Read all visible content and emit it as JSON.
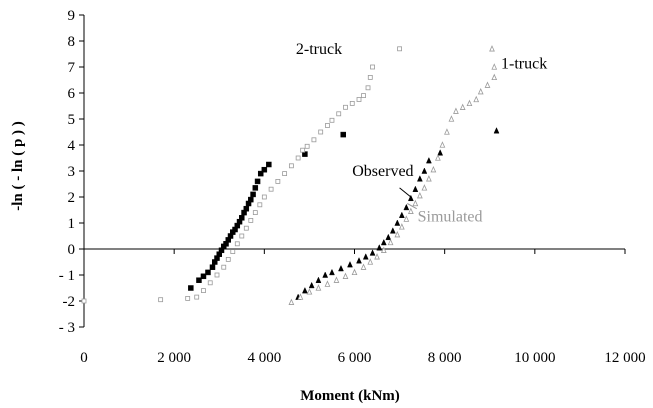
{
  "chart_data": {
    "type": "scatter",
    "xlabel": "Moment (kNm)",
    "ylabel": "-ln ( - ln ( p ) )",
    "xlim": [
      0,
      12000
    ],
    "ylim": [
      -3,
      9
    ],
    "x_ticks": [
      0,
      2000,
      4000,
      6000,
      8000,
      10000,
      12000
    ],
    "x_tick_labels": [
      "0",
      "2 000",
      "4 000",
      "6 000",
      "8 000",
      "10 000",
      "12 000"
    ],
    "y_ticks": [
      -3,
      -2,
      -1,
      0,
      1,
      2,
      3,
      4,
      5,
      6,
      7,
      8,
      9
    ],
    "y_tick_labels": [
      "- 3",
      "-2",
      "- 1",
      "0",
      "1",
      "2",
      "3",
      "4",
      "5",
      "6",
      "7",
      "8",
      "9"
    ],
    "grid": false,
    "legend": "none",
    "annotations": [
      {
        "text": "2-truck",
        "x": 4700,
        "y": 7.5,
        "color": "#000000"
      },
      {
        "text": "1-truck",
        "x": 9250,
        "y": 6.95,
        "color": "#000000"
      },
      {
        "text": "Observed",
        "x": 5950,
        "y": 2.8,
        "color": "#000000"
      },
      {
        "text": "Simulated",
        "x": 7400,
        "y": 1.05,
        "color": "#9a9a9a"
      }
    ],
    "series": [
      {
        "color": "#000000",
        "marker": "square-filled",
        "points": [
          [
            2370,
            -1.5
          ],
          [
            2550,
            -1.2
          ],
          [
            2650,
            -1.05
          ],
          [
            2750,
            -0.9
          ],
          [
            2850,
            -0.7
          ],
          [
            2900,
            -0.5
          ],
          [
            2950,
            -0.35
          ],
          [
            3000,
            -0.2
          ],
          [
            3050,
            -0.05
          ],
          [
            3100,
            0.1
          ],
          [
            3150,
            0.2
          ],
          [
            3200,
            0.35
          ],
          [
            3250,
            0.5
          ],
          [
            3300,
            0.65
          ],
          [
            3350,
            0.75
          ],
          [
            3400,
            0.9
          ],
          [
            3450,
            1.05
          ],
          [
            3500,
            1.2
          ],
          [
            3550,
            1.4
          ],
          [
            3600,
            1.55
          ],
          [
            3650,
            1.75
          ],
          [
            3700,
            1.9
          ],
          [
            3750,
            2.1
          ],
          [
            3800,
            2.35
          ],
          [
            3850,
            2.6
          ],
          [
            3920,
            2.9
          ],
          [
            4000,
            3.05
          ],
          [
            4100,
            3.25
          ],
          [
            4900,
            3.65
          ],
          [
            5750,
            4.4
          ]
        ]
      },
      {
        "color": "#9a9a9a",
        "marker": "square-open",
        "points": [
          [
            0,
            -2.0
          ],
          [
            1700,
            -1.95
          ],
          [
            2300,
            -1.9
          ],
          [
            2500,
            -1.85
          ],
          [
            2650,
            -1.6
          ],
          [
            2800,
            -1.3
          ],
          [
            2950,
            -1.0
          ],
          [
            3100,
            -0.7
          ],
          [
            3200,
            -0.4
          ],
          [
            3300,
            -0.1
          ],
          [
            3400,
            0.2
          ],
          [
            3500,
            0.5
          ],
          [
            3600,
            0.8
          ],
          [
            3700,
            1.1
          ],
          [
            3800,
            1.4
          ],
          [
            3900,
            1.7
          ],
          [
            4000,
            2.0
          ],
          [
            4150,
            2.3
          ],
          [
            4300,
            2.6
          ],
          [
            4450,
            2.9
          ],
          [
            4600,
            3.2
          ],
          [
            4750,
            3.5
          ],
          [
            4850,
            3.8
          ],
          [
            4950,
            3.95
          ],
          [
            5100,
            4.2
          ],
          [
            5250,
            4.5
          ],
          [
            5400,
            4.75
          ],
          [
            5500,
            4.95
          ],
          [
            5650,
            5.2
          ],
          [
            5800,
            5.45
          ],
          [
            5950,
            5.6
          ],
          [
            6100,
            5.75
          ],
          [
            6200,
            5.9
          ],
          [
            6300,
            6.2
          ],
          [
            6350,
            6.6
          ],
          [
            6400,
            7.0
          ],
          [
            7000,
            7.7
          ]
        ]
      },
      {
        "color": "#000000",
        "marker": "triangle-filled",
        "points": [
          [
            4750,
            -1.85
          ],
          [
            4900,
            -1.6
          ],
          [
            5050,
            -1.4
          ],
          [
            5200,
            -1.2
          ],
          [
            5350,
            -1.0
          ],
          [
            5500,
            -0.9
          ],
          [
            5700,
            -0.75
          ],
          [
            5900,
            -0.6
          ],
          [
            6100,
            -0.45
          ],
          [
            6250,
            -0.3
          ],
          [
            6400,
            -0.15
          ],
          [
            6550,
            0.05
          ],
          [
            6650,
            0.25
          ],
          [
            6750,
            0.45
          ],
          [
            6850,
            0.7
          ],
          [
            6950,
            1.0
          ],
          [
            7050,
            1.3
          ],
          [
            7150,
            1.6
          ],
          [
            7250,
            1.95
          ],
          [
            7350,
            2.3
          ],
          [
            7450,
            2.7
          ],
          [
            7550,
            3.0
          ],
          [
            7650,
            3.4
          ],
          [
            7900,
            3.7
          ],
          [
            9150,
            4.55
          ]
        ]
      },
      {
        "color": "#9a9a9a",
        "marker": "triangle-open",
        "points": [
          [
            4600,
            -2.05
          ],
          [
            4800,
            -1.85
          ],
          [
            5000,
            -1.65
          ],
          [
            5200,
            -1.5
          ],
          [
            5400,
            -1.35
          ],
          [
            5600,
            -1.2
          ],
          [
            5800,
            -1.05
          ],
          [
            6000,
            -0.9
          ],
          [
            6200,
            -0.7
          ],
          [
            6350,
            -0.5
          ],
          [
            6500,
            -0.3
          ],
          [
            6650,
            -0.05
          ],
          [
            6800,
            0.25
          ],
          [
            6950,
            0.55
          ],
          [
            7050,
            0.85
          ],
          [
            7150,
            1.15
          ],
          [
            7250,
            1.45
          ],
          [
            7350,
            1.75
          ],
          [
            7450,
            2.05
          ],
          [
            7550,
            2.35
          ],
          [
            7650,
            2.7
          ],
          [
            7750,
            3.05
          ],
          [
            7850,
            3.5
          ],
          [
            7950,
            4.0
          ],
          [
            8050,
            4.5
          ],
          [
            8150,
            5.0
          ],
          [
            8250,
            5.3
          ],
          [
            8400,
            5.45
          ],
          [
            8550,
            5.6
          ],
          [
            8700,
            5.75
          ],
          [
            8800,
            6.05
          ],
          [
            8950,
            6.3
          ],
          [
            9100,
            6.6
          ],
          [
            9100,
            7.0
          ],
          [
            9050,
            7.7
          ]
        ]
      }
    ]
  }
}
